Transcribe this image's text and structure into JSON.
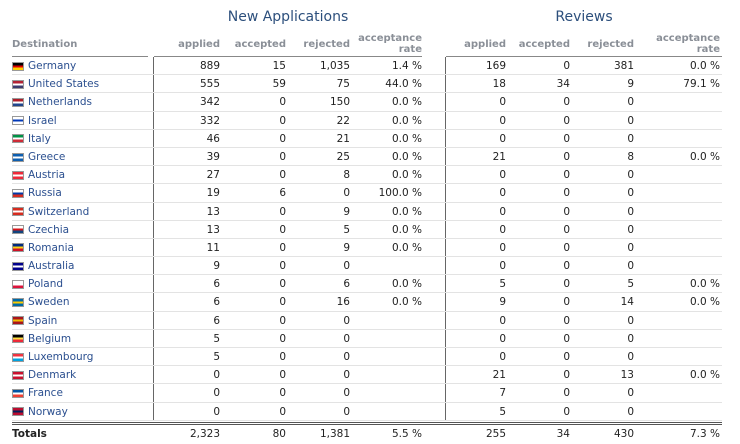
{
  "groups": {
    "new_applications": "New Applications",
    "reviews": "Reviews"
  },
  "headers": {
    "destination": "Destination",
    "applied": "applied",
    "accepted": "accepted",
    "rejected": "rejected",
    "acceptance_rate_1": "acceptance",
    "acceptance_rate_2": "rate"
  },
  "rows": [
    {
      "name": "Germany",
      "flag": [
        "#000000",
        "#dd0000",
        "#ffce00"
      ],
      "na": [
        "889",
        "15",
        "1,035",
        "1.4 %"
      ],
      "rv": [
        "169",
        "0",
        "381",
        "0.0 %"
      ]
    },
    {
      "name": "United States",
      "flag": [
        "#b22234",
        "#ffffff",
        "#3c3b6e"
      ],
      "na": [
        "555",
        "59",
        "75",
        "44.0 %"
      ],
      "rv": [
        "18",
        "34",
        "9",
        "79.1 %"
      ]
    },
    {
      "name": "Netherlands",
      "flag": [
        "#ae1c28",
        "#ffffff",
        "#21468b"
      ],
      "na": [
        "342",
        "0",
        "150",
        "0.0 %"
      ],
      "rv": [
        "0",
        "0",
        "0",
        ""
      ]
    },
    {
      "name": "Israel",
      "flag": [
        "#ffffff",
        "#0038b8",
        "#ffffff"
      ],
      "na": [
        "332",
        "0",
        "22",
        "0.0 %"
      ],
      "rv": [
        "0",
        "0",
        "0",
        ""
      ]
    },
    {
      "name": "Italy",
      "flag": [
        "#009246",
        "#ffffff",
        "#ce2b37"
      ],
      "na": [
        "46",
        "0",
        "21",
        "0.0 %"
      ],
      "rv": [
        "0",
        "0",
        "0",
        ""
      ]
    },
    {
      "name": "Greece",
      "flag": [
        "#0d5eaf",
        "#ffffff",
        "#0d5eaf"
      ],
      "na": [
        "39",
        "0",
        "25",
        "0.0 %"
      ],
      "rv": [
        "21",
        "0",
        "8",
        "0.0 %"
      ]
    },
    {
      "name": "Austria",
      "flag": [
        "#ed2939",
        "#ffffff",
        "#ed2939"
      ],
      "na": [
        "27",
        "0",
        "8",
        "0.0 %"
      ],
      "rv": [
        "0",
        "0",
        "0",
        ""
      ]
    },
    {
      "name": "Russia",
      "flag": [
        "#ffffff",
        "#0039a6",
        "#d52b1e"
      ],
      "na": [
        "19",
        "6",
        "0",
        "100.0 %"
      ],
      "rv": [
        "0",
        "0",
        "0",
        ""
      ]
    },
    {
      "name": "Switzerland",
      "flag": [
        "#d52b1e",
        "#ffffff",
        "#d52b1e"
      ],
      "na": [
        "13",
        "0",
        "9",
        "0.0 %"
      ],
      "rv": [
        "0",
        "0",
        "0",
        ""
      ]
    },
    {
      "name": "Czechia",
      "flag": [
        "#ffffff",
        "#d7141a",
        "#11457e"
      ],
      "na": [
        "13",
        "0",
        "5",
        "0.0 %"
      ],
      "rv": [
        "0",
        "0",
        "0",
        ""
      ]
    },
    {
      "name": "Romania",
      "flag": [
        "#002b7f",
        "#fcd116",
        "#ce1126"
      ],
      "na": [
        "11",
        "0",
        "9",
        "0.0 %"
      ],
      "rv": [
        "0",
        "0",
        "0",
        ""
      ]
    },
    {
      "name": "Australia",
      "flag": [
        "#00008b",
        "#ffffff",
        "#00008b"
      ],
      "na": [
        "9",
        "0",
        "0",
        ""
      ],
      "rv": [
        "0",
        "0",
        "0",
        ""
      ]
    },
    {
      "name": "Poland",
      "flag": [
        "#ffffff",
        "#ffffff",
        "#dc143c"
      ],
      "na": [
        "6",
        "0",
        "6",
        "0.0 %"
      ],
      "rv": [
        "5",
        "0",
        "5",
        "0.0 %"
      ]
    },
    {
      "name": "Sweden",
      "flag": [
        "#006aa7",
        "#fecc00",
        "#006aa7"
      ],
      "na": [
        "6",
        "0",
        "16",
        "0.0 %"
      ],
      "rv": [
        "9",
        "0",
        "14",
        "0.0 %"
      ]
    },
    {
      "name": "Spain",
      "flag": [
        "#aa151b",
        "#f1bf00",
        "#aa151b"
      ],
      "na": [
        "6",
        "0",
        "0",
        ""
      ],
      "rv": [
        "0",
        "0",
        "0",
        ""
      ]
    },
    {
      "name": "Belgium",
      "flag": [
        "#000000",
        "#fae042",
        "#ed2939"
      ],
      "na": [
        "5",
        "0",
        "0",
        ""
      ],
      "rv": [
        "0",
        "0",
        "0",
        ""
      ]
    },
    {
      "name": "Luxembourg",
      "flag": [
        "#ef3340",
        "#ffffff",
        "#00a3e0"
      ],
      "na": [
        "5",
        "0",
        "0",
        ""
      ],
      "rv": [
        "0",
        "0",
        "0",
        ""
      ]
    },
    {
      "name": "Denmark",
      "flag": [
        "#c8102e",
        "#ffffff",
        "#c8102e"
      ],
      "na": [
        "0",
        "0",
        "0",
        ""
      ],
      "rv": [
        "21",
        "0",
        "13",
        "0.0 %"
      ]
    },
    {
      "name": "France",
      "flag": [
        "#0055a4",
        "#ffffff",
        "#ef4135"
      ],
      "na": [
        "0",
        "0",
        "0",
        ""
      ],
      "rv": [
        "7",
        "0",
        "0",
        ""
      ]
    },
    {
      "name": "Norway",
      "flag": [
        "#ba0c2f",
        "#00205b",
        "#ba0c2f"
      ],
      "na": [
        "0",
        "0",
        "0",
        ""
      ],
      "rv": [
        "5",
        "0",
        "0",
        ""
      ]
    }
  ],
  "totals": {
    "label": "Totals",
    "na": [
      "2,323",
      "80",
      "1,381",
      "5.5 %"
    ],
    "rv": [
      "255",
      "34",
      "430",
      "7.3 %"
    ]
  }
}
